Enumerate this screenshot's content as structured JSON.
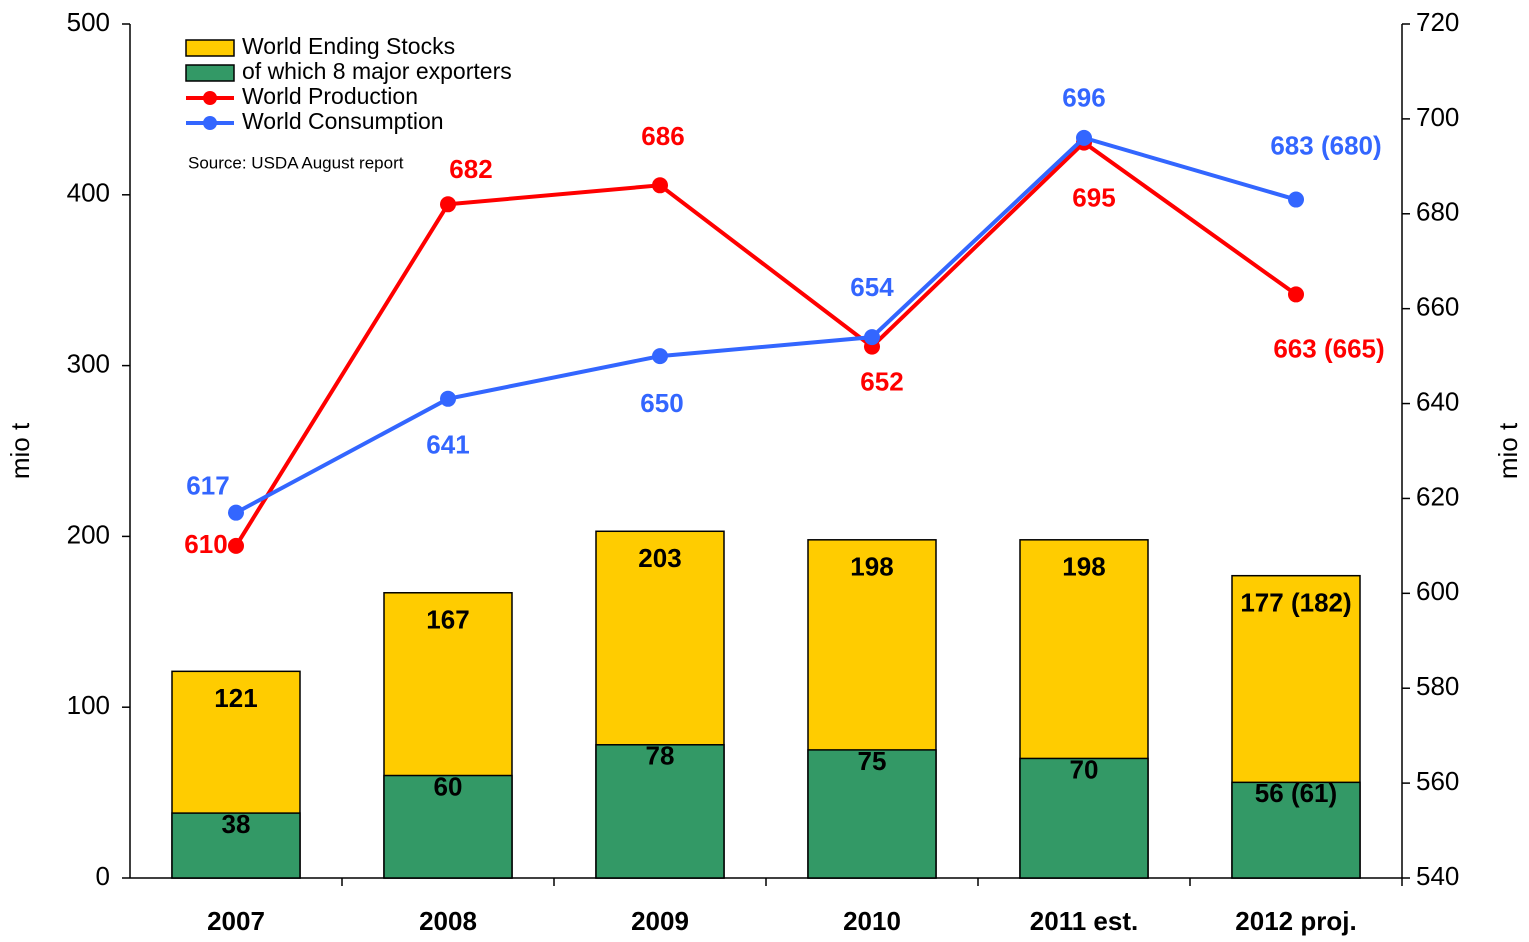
{
  "chart_data": {
    "type": "combo",
    "categories": [
      "2007",
      "2008",
      "2009",
      "2010",
      "2011 est.",
      "2012 proj."
    ],
    "ylabel": "mio t",
    "y2label": "mio t",
    "source": "Source: USDA August report",
    "ylim": [
      0,
      500
    ],
    "yticks": [
      0,
      100,
      200,
      300,
      400,
      500
    ],
    "y2lim": [
      540,
      720
    ],
    "y2ticks": [
      540,
      560,
      580,
      600,
      620,
      640,
      660,
      680,
      700,
      720
    ],
    "series": [
      {
        "name": "World Ending Stocks",
        "type": "bar",
        "color": "#ffcc00",
        "values": [
          121,
          167,
          203,
          198,
          198,
          177
        ],
        "value_labels": [
          "121",
          "167",
          "203",
          "198",
          "198",
          "177 (182)"
        ]
      },
      {
        "name": "of which 8 major exporters",
        "type": "bar",
        "color": "#339966",
        "values": [
          38,
          60,
          78,
          75,
          70,
          56
        ],
        "value_labels": [
          "38",
          "60",
          "78",
          "75",
          "70",
          "56 (61)"
        ]
      },
      {
        "name": "World Production",
        "type": "line",
        "axis": "y2",
        "color": "#ff0000",
        "values": [
          610,
          682,
          686,
          652,
          695,
          663
        ],
        "value_labels": [
          "610",
          "682",
          "686",
          "652",
          "695",
          "663 (665)"
        ]
      },
      {
        "name": "World Consumption",
        "type": "line",
        "axis": "y2",
        "color": "#3366ff",
        "values": [
          617,
          641,
          650,
          654,
          696,
          683
        ],
        "value_labels": [
          "617",
          "641",
          "650",
          "654",
          "696",
          "683 (680)"
        ]
      }
    ]
  }
}
